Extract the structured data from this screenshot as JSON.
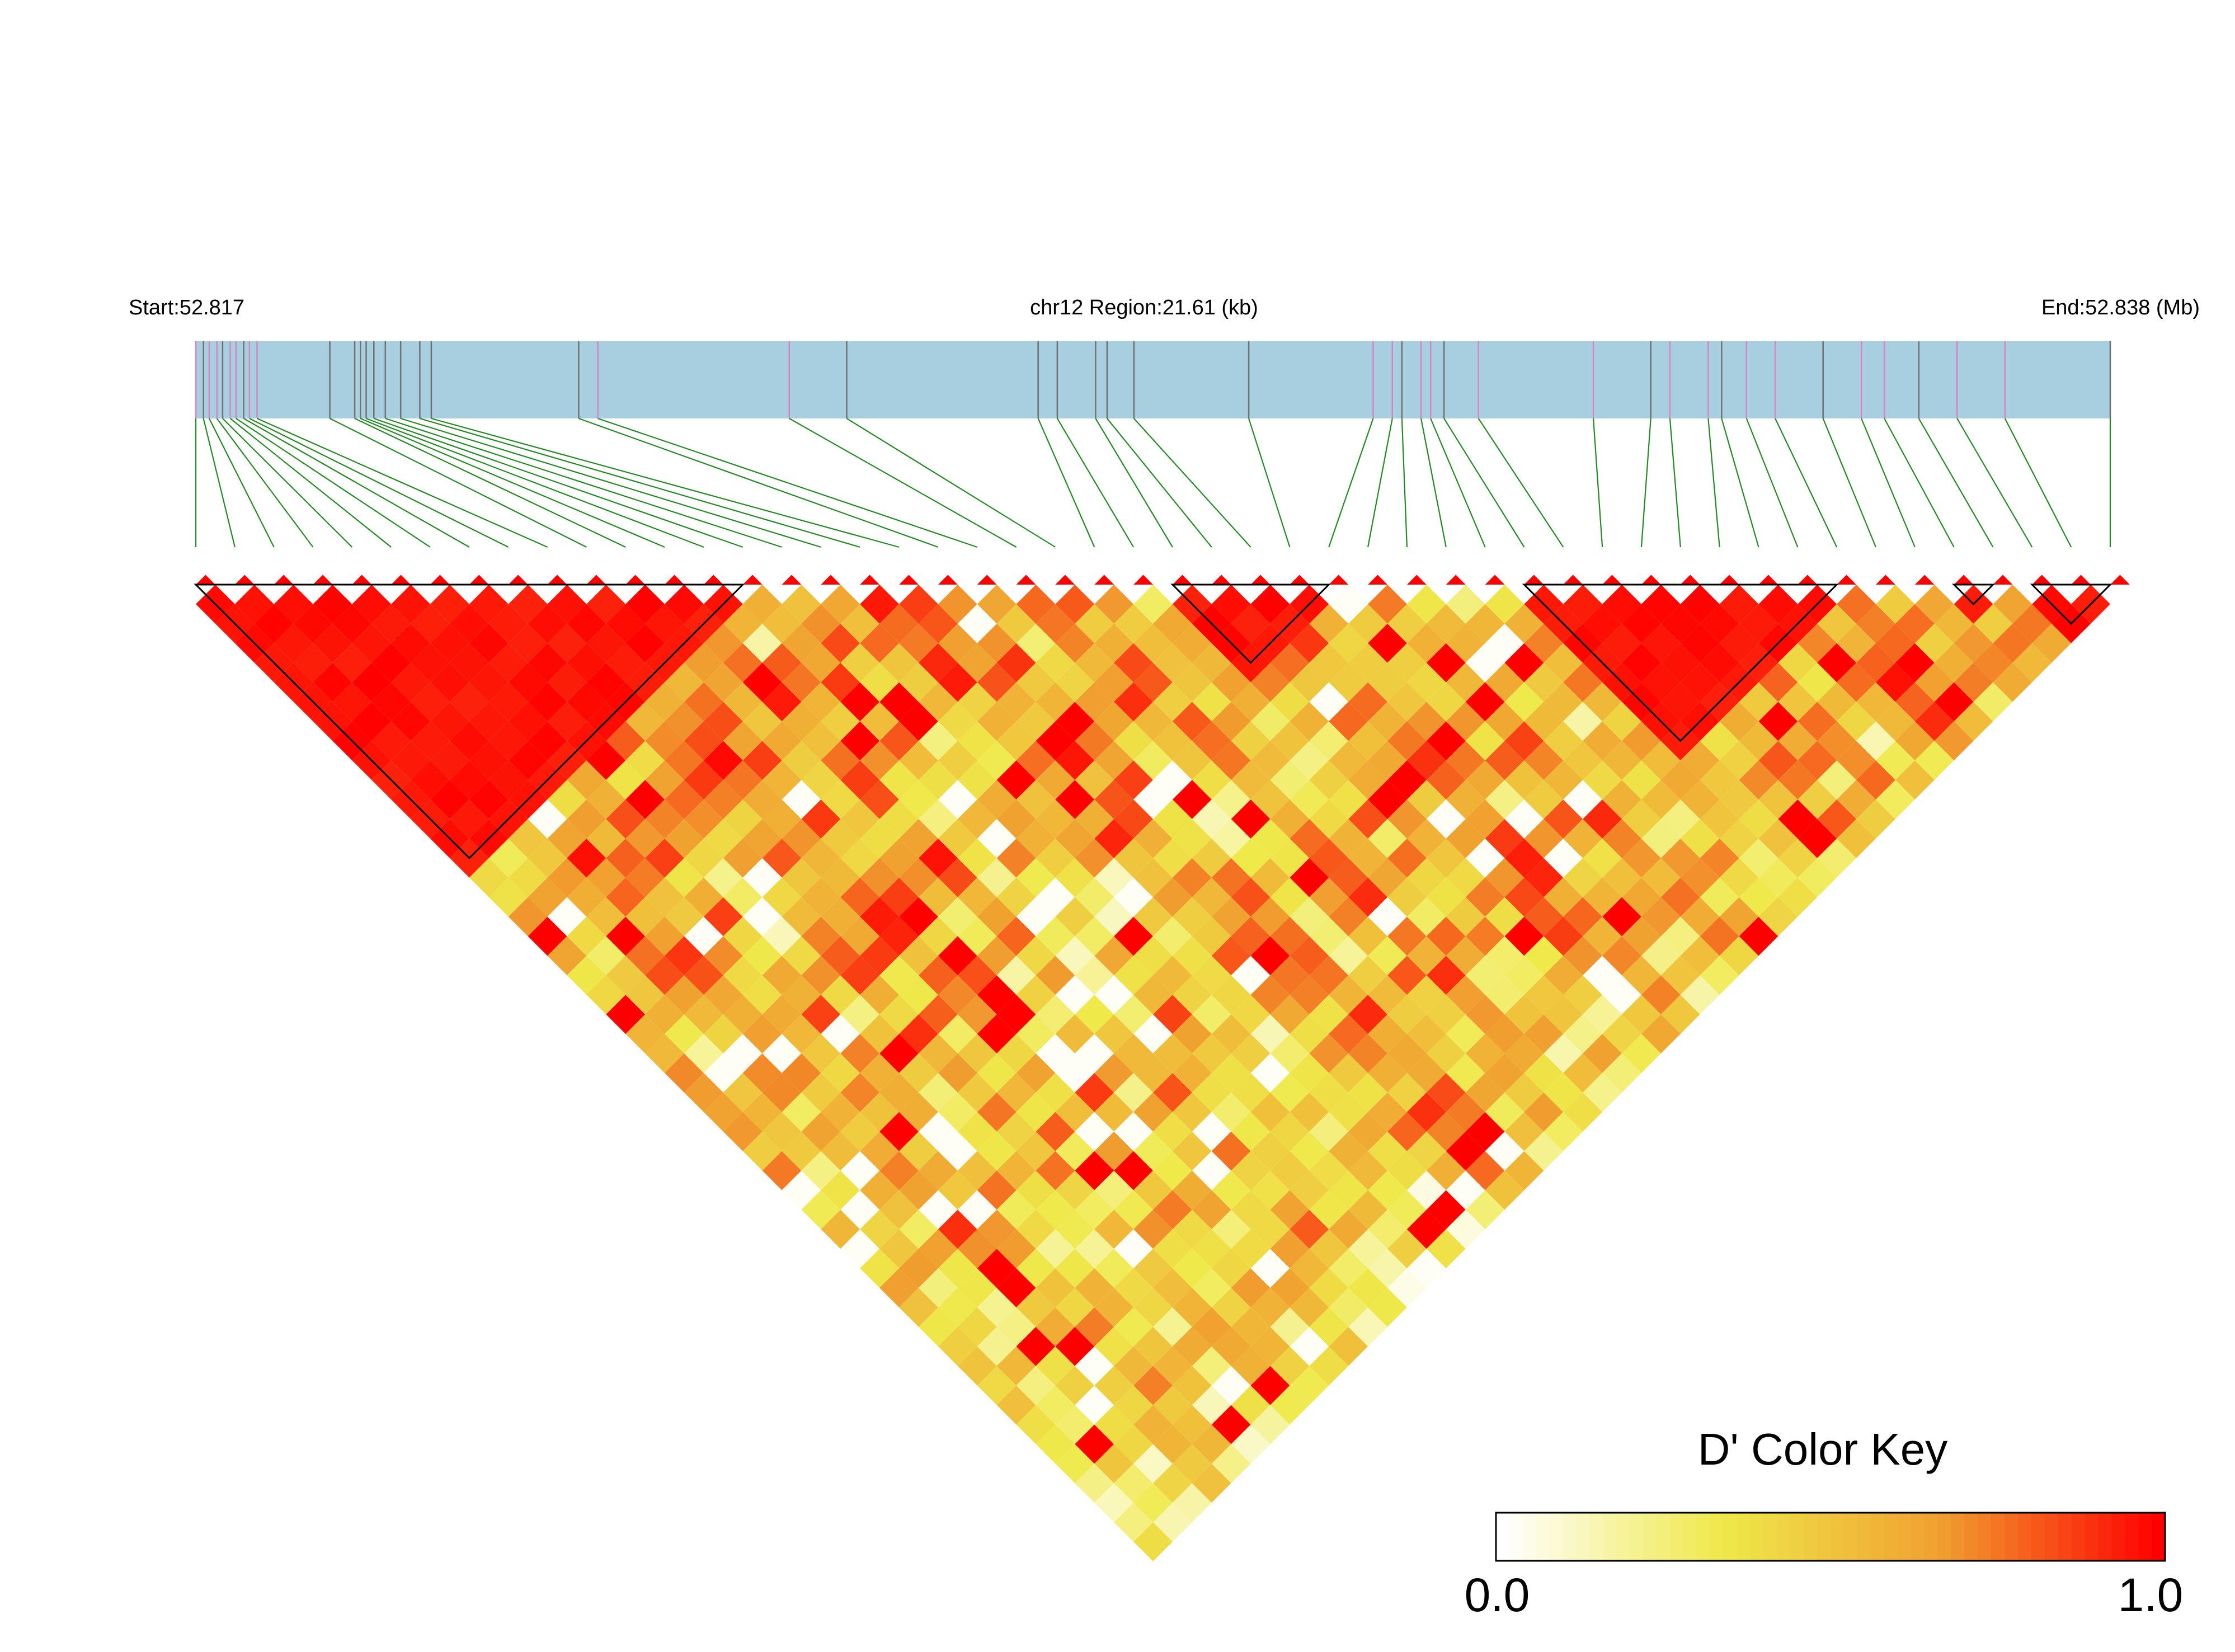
{
  "header": {
    "start_label": "Start:52.817",
    "region_label": "chr12 Region:21.61 (kb)",
    "end_label": "End:52.838 (Mb)"
  },
  "chart_data": {
    "type": "heatmap",
    "description_free": true,
    "region": {
      "chromosome": "chr12",
      "start_mb": 52.817,
      "end_mb": 52.838,
      "length_kb": 21.61
    },
    "metric": "D'",
    "n_snps": 50,
    "snp_rel_positions": [
      0.0,
      0.004,
      0.007,
      0.011,
      0.014,
      0.018,
      0.021,
      0.025,
      0.028,
      0.032,
      0.07,
      0.083,
      0.086,
      0.089,
      0.093,
      0.099,
      0.107,
      0.117,
      0.123,
      0.2,
      0.21,
      0.31,
      0.34,
      0.44,
      0.45,
      0.47,
      0.476,
      0.49,
      0.55,
      0.615,
      0.625,
      0.63,
      0.64,
      0.645,
      0.652,
      0.67,
      0.73,
      0.76,
      0.77,
      0.79,
      0.797,
      0.81,
      0.825,
      0.85,
      0.87,
      0.882,
      0.9,
      0.92,
      0.945,
      1.0
    ],
    "blocks": [
      {
        "start": 0,
        "end": 14
      },
      {
        "start": 25,
        "end": 29
      },
      {
        "start": 34,
        "end": 42
      },
      {
        "start": 45,
        "end": 46
      },
      {
        "start": 47,
        "end": 49
      }
    ],
    "color_key": {
      "title": "D' Color Key",
      "min_label": "0.0",
      "max_label": "1.0",
      "min": 0.0,
      "max": 1.0,
      "stops": [
        "#ffffff",
        "#efe94a",
        "#f0a030",
        "#ff0000"
      ]
    },
    "colors": {
      "track_fill": "#a8cfe0",
      "track_line_pink": "#d884c4",
      "track_line_gray": "#707070",
      "connector": "#228b22"
    }
  }
}
